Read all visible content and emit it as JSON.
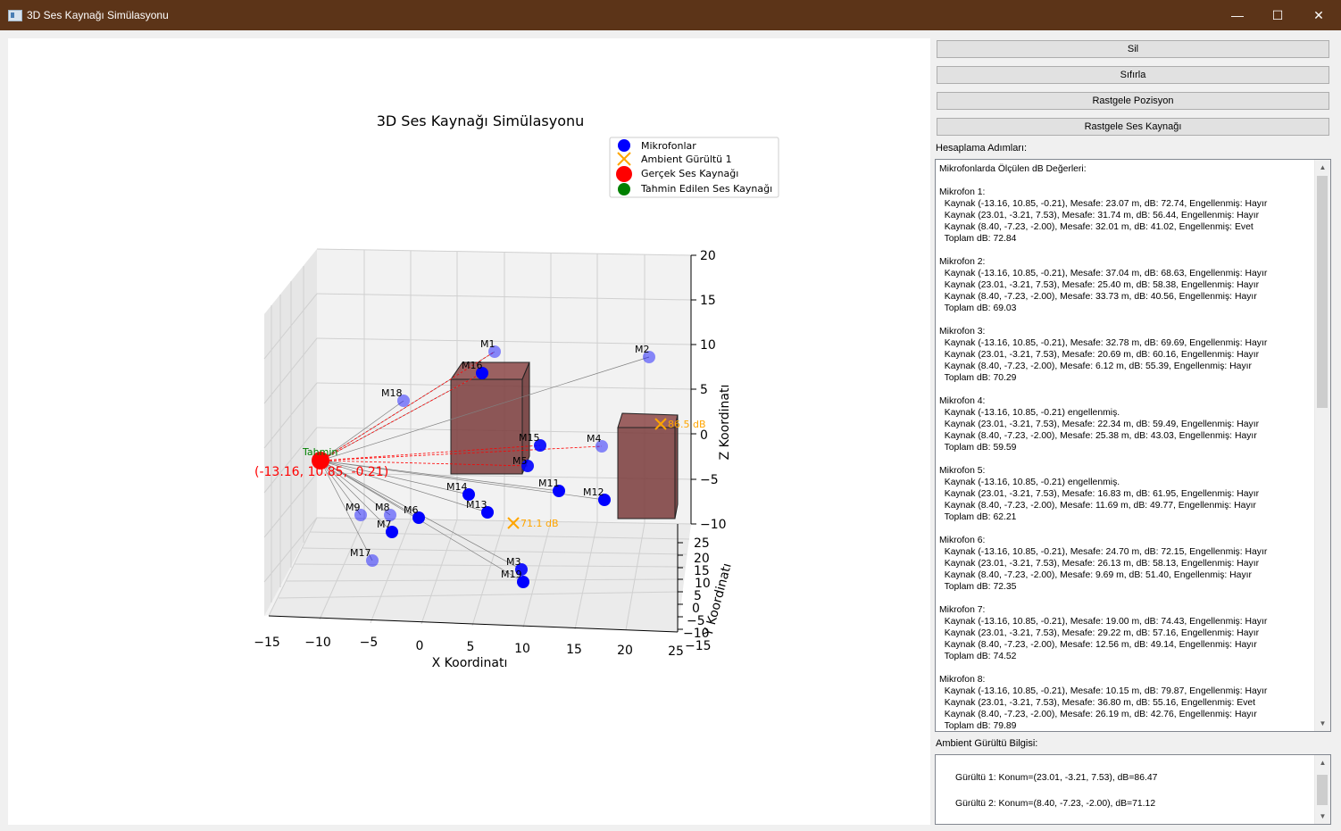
{
  "window": {
    "title": "3D Ses Kaynağı Simülasyonu",
    "minimize_glyph": "—",
    "maximize_glyph": "☐",
    "close_glyph": "✕"
  },
  "buttons": {
    "sil": "Sil",
    "sifirla": "Sıfırla",
    "rastgele_pozisyon": "Rastgele Pozisyon",
    "rastgele_ses": "Rastgele Ses Kaynağı"
  },
  "steps": {
    "label": "Hesaplama Adımları:",
    "text": "Mikrofonlarda Ölçülen dB Değerleri:\n\nMikrofon 1:\n  Kaynak (-13.16, 10.85, -0.21), Mesafe: 23.07 m, dB: 72.74, Engellenmiş: Hayır\n  Kaynak (23.01, -3.21, 7.53), Mesafe: 31.74 m, dB: 56.44, Engellenmiş: Hayır\n  Kaynak (8.40, -7.23, -2.00), Mesafe: 32.01 m, dB: 41.02, Engellenmiş: Evet\n  Toplam dB: 72.84\n\nMikrofon 2:\n  Kaynak (-13.16, 10.85, -0.21), Mesafe: 37.04 m, dB: 68.63, Engellenmiş: Hayır\n  Kaynak (23.01, -3.21, 7.53), Mesafe: 25.40 m, dB: 58.38, Engellenmiş: Hayır\n  Kaynak (8.40, -7.23, -2.00), Mesafe: 33.73 m, dB: 40.56, Engellenmiş: Hayır\n  Toplam dB: 69.03\n\nMikrofon 3:\n  Kaynak (-13.16, 10.85, -0.21), Mesafe: 32.78 m, dB: 69.69, Engellenmiş: Hayır\n  Kaynak (23.01, -3.21, 7.53), Mesafe: 20.69 m, dB: 60.16, Engellenmiş: Hayır\n  Kaynak (8.40, -7.23, -2.00), Mesafe: 6.12 m, dB: 55.39, Engellenmiş: Hayır\n  Toplam dB: 70.29\n\nMikrofon 4:\n  Kaynak (-13.16, 10.85, -0.21) engellenmiş.\n  Kaynak (23.01, -3.21, 7.53), Mesafe: 22.34 m, dB: 59.49, Engellenmiş: Hayır\n  Kaynak (8.40, -7.23, -2.00), Mesafe: 25.38 m, dB: 43.03, Engellenmiş: Hayır\n  Toplam dB: 59.59\n\nMikrofon 5:\n  Kaynak (-13.16, 10.85, -0.21) engellenmiş.\n  Kaynak (23.01, -3.21, 7.53), Mesafe: 16.83 m, dB: 61.95, Engellenmiş: Hayır\n  Kaynak (8.40, -7.23, -2.00), Mesafe: 11.69 m, dB: 49.77, Engellenmiş: Hayır\n  Toplam dB: 62.21\n\nMikrofon 6:\n  Kaynak (-13.16, 10.85, -0.21), Mesafe: 24.70 m, dB: 72.15, Engellenmiş: Hayır\n  Kaynak (23.01, -3.21, 7.53), Mesafe: 26.13 m, dB: 58.13, Engellenmiş: Hayır\n  Kaynak (8.40, -7.23, -2.00), Mesafe: 9.69 m, dB: 51.40, Engellenmiş: Hayır\n  Toplam dB: 72.35\n\nMikrofon 7:\n  Kaynak (-13.16, 10.85, -0.21), Mesafe: 19.00 m, dB: 74.43, Engellenmiş: Hayır\n  Kaynak (23.01, -3.21, 7.53), Mesafe: 29.22 m, dB: 57.16, Engellenmiş: Hayır\n  Kaynak (8.40, -7.23, -2.00), Mesafe: 12.56 m, dB: 49.14, Engellenmiş: Hayır\n  Toplam dB: 74.52\n\nMikrofon 8:\n  Kaynak (-13.16, 10.85, -0.21), Mesafe: 10.15 m, dB: 79.87, Engellenmiş: Hayır\n  Kaynak (23.01, -3.21, 7.53), Mesafe: 36.80 m, dB: 55.16, Engellenmiş: Evet\n  Kaynak (8.40, -7.23, -2.00), Mesafe: 26.19 m, dB: 42.76, Engellenmiş: Hayır\n  Toplam dB: 79.89"
  },
  "ambient": {
    "label": "Ambient Gürültü Bilgisi:",
    "text": "\nGürültü 1: Konum=(23.01, -3.21, 7.53), dB=86.47\n\nGürültü 2: Konum=(8.40, -7.23, -2.00), dB=71.12"
  },
  "chart_data": {
    "type": "scatter3d",
    "title": "3D Ses Kaynağı Simülasyonu",
    "xlabel": "X Koordinatı",
    "ylabel": "Y Koordinatı",
    "zlabel": "Z Koordinatı",
    "xticks": [
      "−15",
      "−10",
      "−5",
      "0",
      "5",
      "10",
      "15",
      "20",
      "25"
    ],
    "yticks": [
      "−15",
      "−10",
      "−5",
      "0",
      "5",
      "10",
      "15",
      "20",
      "25"
    ],
    "zticks": [
      "−10",
      "−5",
      "0",
      "5",
      "10",
      "15",
      "20"
    ],
    "legend": [
      "Mikrofonlar",
      "Ambient Gürültü 1",
      "Gerçek Ses Kaynağı",
      "Tahmin Edilen Ses Kaynağı"
    ],
    "source_label": "(-13.16, 10.85, -0.21)",
    "estimate_label": "Tahmin",
    "noise_labels": [
      "86.5 dB",
      "71.1 dB"
    ],
    "microphones": [
      "M1",
      "M2",
      "M3",
      "M4",
      "M5",
      "M6",
      "M7",
      "M8",
      "M9",
      "M11",
      "M12",
      "M13",
      "M14",
      "M15",
      "M16",
      "M17",
      "M18",
      "M19"
    ],
    "colors": {
      "mic": "#0000ff",
      "source": "#ff0000",
      "estimate": "#008000",
      "noise": "#ffa500",
      "obstacle": "#7a3b3b"
    }
  }
}
